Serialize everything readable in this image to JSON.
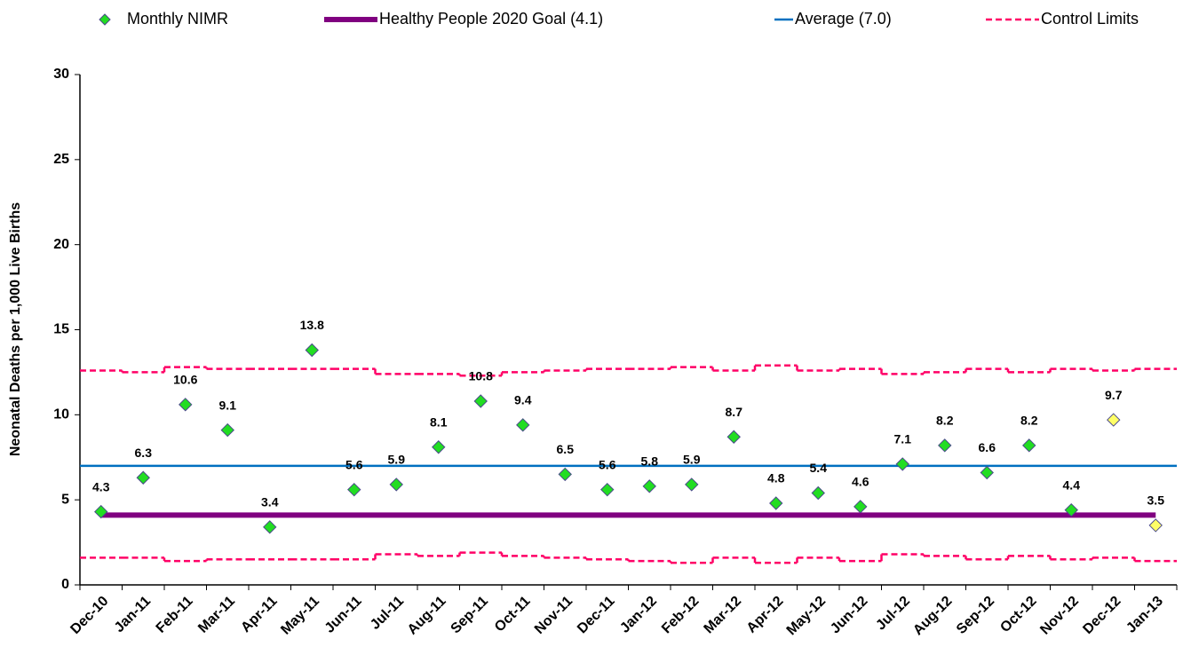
{
  "chart_data": {
    "type": "control",
    "y_label": "Neonatal Deaths per 1,000 Live Births",
    "categories": [
      "Dec-10",
      "Jan-11",
      "Feb-11",
      "Mar-11",
      "Apr-11",
      "May-11",
      "Jun-11",
      "Jul-11",
      "Aug-11",
      "Sep-11",
      "Oct-11",
      "Nov-11",
      "Dec-11",
      "Jan-12",
      "Feb-12",
      "Mar-12",
      "Apr-12",
      "May-12",
      "Jun-12",
      "Jul-12",
      "Aug-12",
      "Sep-12",
      "Oct-12",
      "Nov-12",
      "Dec-12",
      "Jan-13"
    ],
    "ylim": [
      0,
      30
    ],
    "yticks": [
      0,
      5,
      10,
      15,
      20,
      25,
      30
    ],
    "series": [
      {
        "name": "Monthly NIMR",
        "kind": "points",
        "color": "#22dd22",
        "point_colors": [
          "#22dd22",
          "#22dd22",
          "#22dd22",
          "#22dd22",
          "#22dd22",
          "#22dd22",
          "#22dd22",
          "#22dd22",
          "#22dd22",
          "#22dd22",
          "#22dd22",
          "#22dd22",
          "#22dd22",
          "#22dd22",
          "#22dd22",
          "#22dd22",
          "#22dd22",
          "#22dd22",
          "#22dd22",
          "#22dd22",
          "#22dd22",
          "#22dd22",
          "#22dd22",
          "#22dd22",
          "#ffff66",
          "#ffff66"
        ],
        "values": [
          4.3,
          6.3,
          10.6,
          9.1,
          3.4,
          13.8,
          5.6,
          5.9,
          8.1,
          10.8,
          9.4,
          6.5,
          5.6,
          5.8,
          5.9,
          8.7,
          4.8,
          5.4,
          4.6,
          7.1,
          8.2,
          6.6,
          8.2,
          4.4,
          9.7,
          3.5
        ]
      },
      {
        "name": "Healthy People 2020 Goal (4.1)",
        "kind": "goal",
        "color": "#800080",
        "value": 4.1
      },
      {
        "name": "Average (7.0)",
        "kind": "average",
        "color": "#0070c0",
        "value": 7.0
      },
      {
        "name": "Control Limits",
        "kind": "limits",
        "color": "#ff0066",
        "upper": [
          12.6,
          12.5,
          12.8,
          12.7,
          12.7,
          12.7,
          12.7,
          12.4,
          12.4,
          12.3,
          12.5,
          12.6,
          12.7,
          12.7,
          12.8,
          12.6,
          12.9,
          12.6,
          12.7,
          12.4,
          12.5,
          12.7,
          12.5,
          12.7,
          12.6,
          12.7
        ],
        "lower": [
          1.6,
          1.6,
          1.4,
          1.5,
          1.5,
          1.5,
          1.5,
          1.8,
          1.7,
          1.9,
          1.7,
          1.6,
          1.5,
          1.4,
          1.3,
          1.6,
          1.3,
          1.6,
          1.4,
          1.8,
          1.7,
          1.5,
          1.7,
          1.5,
          1.6,
          1.4
        ]
      }
    ]
  }
}
